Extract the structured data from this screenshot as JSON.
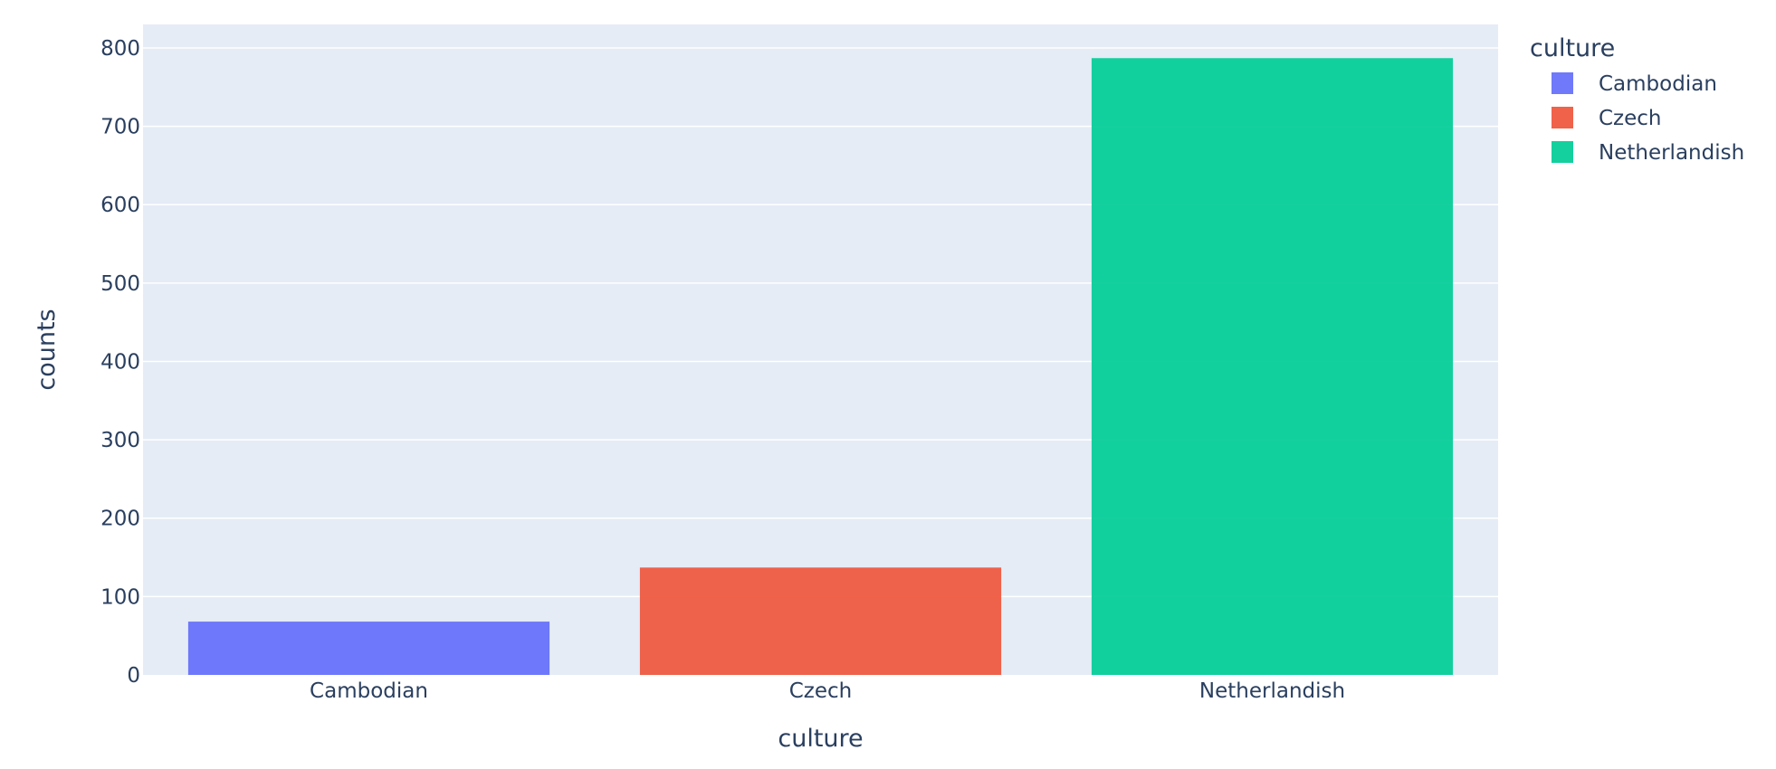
{
  "chart_data": {
    "type": "bar",
    "categories": [
      "Cambodian",
      "Czech",
      "Netherlandish"
    ],
    "values": [
      68,
      137,
      787
    ],
    "colors": [
      "#636efa",
      "#EF553B",
      "#00cc96"
    ],
    "xlabel": "culture",
    "ylabel": "counts",
    "ylim": [
      0,
      830
    ],
    "yticks": [
      0,
      100,
      200,
      300,
      400,
      500,
      600,
      700,
      800
    ],
    "grid": true,
    "plot_background": "#E5ECF6",
    "gridline_color": "#ffffff",
    "legend": {
      "title": "culture",
      "placement": "top-right",
      "entries": [
        "Cambodian",
        "Czech",
        "Netherlandish"
      ]
    }
  }
}
